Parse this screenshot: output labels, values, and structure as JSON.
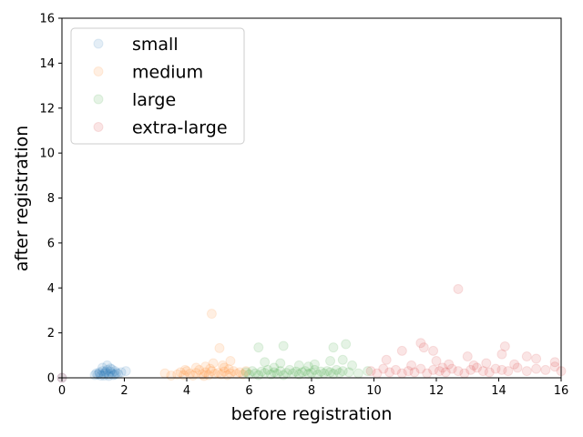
{
  "chart_data": {
    "type": "scatter",
    "xlabel": "before registration",
    "ylabel": "after registration",
    "xlim": [
      0,
      16
    ],
    "ylim": [
      0,
      16
    ],
    "xticks": [
      "0",
      "2",
      "4",
      "6",
      "8",
      "10",
      "12",
      "14",
      "16"
    ],
    "yticks": [
      "0",
      "2",
      "4",
      "6",
      "8",
      "10",
      "12",
      "14",
      "16"
    ],
    "grid": false,
    "legend_position": "top-left",
    "marker_alpha": 0.12,
    "series": [
      {
        "name": "small",
        "color": "#1f77b4",
        "points": [
          [
            0,
            0
          ],
          [
            1.05,
            0.12
          ],
          [
            1.1,
            0.2
          ],
          [
            1.15,
            0.15
          ],
          [
            1.2,
            0.25
          ],
          [
            1.25,
            0.1
          ],
          [
            1.3,
            0.3
          ],
          [
            1.35,
            0.18
          ],
          [
            1.4,
            0.22
          ],
          [
            1.45,
            0.35
          ],
          [
            1.5,
            0.15
          ],
          [
            1.55,
            0.28
          ],
          [
            1.6,
            0.2
          ],
          [
            1.65,
            0.12
          ],
          [
            1.7,
            0.3
          ],
          [
            1.75,
            0.22
          ],
          [
            1.8,
            0.18
          ],
          [
            1.3,
            0.45
          ],
          [
            1.45,
            0.55
          ],
          [
            1.55,
            0.42
          ],
          [
            1.6,
            0.38
          ],
          [
            1.9,
            0.25
          ],
          [
            2.05,
            0.3
          ],
          [
            1.35,
            0.1
          ],
          [
            1.5,
            0.08
          ],
          [
            1.2,
            0.18
          ],
          [
            1.4,
            0.28
          ],
          [
            1.7,
            0.15
          ]
        ]
      },
      {
        "name": "medium",
        "color": "#ff7f0e",
        "points": [
          [
            3.3,
            0.2
          ],
          [
            3.5,
            0.1
          ],
          [
            3.7,
            0.15
          ],
          [
            3.8,
            0.25
          ],
          [
            3.9,
            0.12
          ],
          [
            4.0,
            0.3
          ],
          [
            4.1,
            0.18
          ],
          [
            4.2,
            0.1
          ],
          [
            4.3,
            0.22
          ],
          [
            4.4,
            0.35
          ],
          [
            4.5,
            0.15
          ],
          [
            4.6,
            0.25
          ],
          [
            4.7,
            0.12
          ],
          [
            4.8,
            0.3
          ],
          [
            4.9,
            0.18
          ],
          [
            5.0,
            0.22
          ],
          [
            5.1,
            0.15
          ],
          [
            5.2,
            0.28
          ],
          [
            5.3,
            0.12
          ],
          [
            5.4,
            0.2
          ],
          [
            5.5,
            0.3
          ],
          [
            5.6,
            0.18
          ],
          [
            5.7,
            0.25
          ],
          [
            5.8,
            0.15
          ],
          [
            4.8,
            2.85
          ],
          [
            5.05,
            1.32
          ],
          [
            5.4,
            0.75
          ],
          [
            4.6,
            0.5
          ],
          [
            4.85,
            0.65
          ],
          [
            5.2,
            0.45
          ],
          [
            4.3,
            0.45
          ],
          [
            3.95,
            0.35
          ],
          [
            5.9,
            0.3
          ],
          [
            4.55,
            0.08
          ],
          [
            4.75,
            0.4
          ],
          [
            5.15,
            0.55
          ],
          [
            5.35,
            0.38
          ]
        ]
      },
      {
        "name": "large",
        "color": "#2ca02c",
        "points": [
          [
            5.9,
            0.25
          ],
          [
            6.0,
            0.15
          ],
          [
            6.1,
            0.3
          ],
          [
            6.2,
            0.2
          ],
          [
            6.3,
            0.12
          ],
          [
            6.4,
            0.28
          ],
          [
            6.5,
            0.22
          ],
          [
            6.6,
            0.35
          ],
          [
            6.7,
            0.15
          ],
          [
            6.8,
            0.25
          ],
          [
            6.9,
            0.18
          ],
          [
            7.0,
            0.3
          ],
          [
            7.1,
            0.12
          ],
          [
            7.2,
            0.22
          ],
          [
            7.3,
            0.35
          ],
          [
            7.4,
            0.2
          ],
          [
            7.5,
            0.28
          ],
          [
            7.6,
            0.15
          ],
          [
            7.7,
            0.25
          ],
          [
            7.8,
            0.3
          ],
          [
            7.9,
            0.18
          ],
          [
            8.0,
            0.22
          ],
          [
            8.1,
            0.35
          ],
          [
            8.2,
            0.15
          ],
          [
            8.3,
            0.28
          ],
          [
            8.4,
            0.2
          ],
          [
            8.5,
            0.3
          ],
          [
            8.6,
            0.25
          ],
          [
            8.7,
            0.18
          ],
          [
            8.8,
            0.35
          ],
          [
            8.9,
            0.22
          ],
          [
            9.0,
            0.3
          ],
          [
            9.2,
            0.25
          ],
          [
            9.5,
            0.2
          ],
          [
            9.8,
            0.3
          ],
          [
            6.3,
            1.35
          ],
          [
            7.1,
            1.42
          ],
          [
            8.7,
            1.35
          ],
          [
            9.1,
            1.5
          ],
          [
            6.5,
            0.7
          ],
          [
            7.0,
            0.65
          ],
          [
            7.6,
            0.55
          ],
          [
            8.1,
            0.6
          ],
          [
            8.6,
            0.75
          ],
          [
            9.3,
            0.55
          ],
          [
            9.0,
            0.8
          ],
          [
            6.8,
            0.45
          ],
          [
            7.9,
            0.5
          ]
        ]
      },
      {
        "name": "extra-large",
        "color": "#d62728",
        "points": [
          [
            0,
            0
          ],
          [
            9.9,
            0.3
          ],
          [
            10.1,
            0.2
          ],
          [
            10.3,
            0.4
          ],
          [
            10.5,
            0.25
          ],
          [
            10.7,
            0.35
          ],
          [
            10.9,
            0.2
          ],
          [
            11.1,
            0.3
          ],
          [
            11.3,
            0.25
          ],
          [
            11.5,
            0.4
          ],
          [
            11.7,
            0.2
          ],
          [
            11.9,
            0.35
          ],
          [
            12.1,
            0.3
          ],
          [
            12.3,
            0.25
          ],
          [
            12.5,
            0.4
          ],
          [
            12.7,
            0.3
          ],
          [
            12.9,
            0.2
          ],
          [
            13.1,
            0.35
          ],
          [
            13.3,
            0.45
          ],
          [
            13.5,
            0.3
          ],
          [
            13.7,
            0.25
          ],
          [
            13.9,
            0.4
          ],
          [
            14.1,
            0.35
          ],
          [
            14.3,
            0.3
          ],
          [
            14.6,
            0.45
          ],
          [
            14.9,
            0.3
          ],
          [
            15.2,
            0.4
          ],
          [
            15.5,
            0.35
          ],
          [
            15.8,
            0.5
          ],
          [
            16.0,
            0.3
          ],
          [
            12.7,
            3.95
          ],
          [
            11.5,
            1.55
          ],
          [
            11.6,
            1.35
          ],
          [
            11.9,
            1.2
          ],
          [
            10.9,
            1.2
          ],
          [
            14.2,
            1.4
          ],
          [
            13.0,
            0.95
          ],
          [
            14.1,
            1.05
          ],
          [
            14.9,
            0.95
          ],
          [
            15.2,
            0.85
          ],
          [
            15.8,
            0.7
          ],
          [
            12.0,
            0.75
          ],
          [
            12.4,
            0.6
          ],
          [
            11.2,
            0.55
          ],
          [
            13.6,
            0.65
          ],
          [
            10.4,
            0.8
          ],
          [
            12.2,
            0.45
          ],
          [
            13.2,
            0.55
          ],
          [
            14.5,
            0.6
          ]
        ]
      }
    ]
  }
}
